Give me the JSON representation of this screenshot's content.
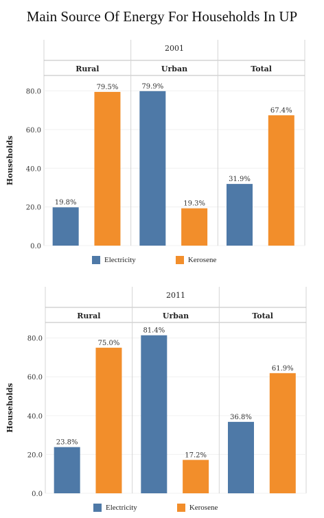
{
  "title": "Main Source Of Energy For Households In UP",
  "colors": {
    "electricity": "#4e79a7",
    "kerosene": "#f28e2b"
  },
  "chart_data": [
    {
      "type": "bar",
      "year_label": "2001",
      "panels": [
        "Rural",
        "Urban",
        "Total"
      ],
      "ylabel": "Households",
      "ylim": [
        0,
        88
      ],
      "yticks": [
        "0.0",
        "20.0",
        "40.0",
        "60.0",
        "80.0"
      ],
      "series": [
        {
          "name": "Electricity",
          "values": [
            19.8,
            79.9,
            31.9
          ],
          "labels": [
            "19.8%",
            "79.9%",
            "31.9%"
          ]
        },
        {
          "name": "Kerosene",
          "values": [
            79.5,
            19.3,
            67.4
          ],
          "labels": [
            "79.5%",
            "19.3%",
            "67.4%"
          ]
        }
      ]
    },
    {
      "type": "bar",
      "year_label": "2011",
      "panels": [
        "Rural",
        "Urban",
        "Total"
      ],
      "ylabel": "Households",
      "ylim": [
        0,
        88
      ],
      "yticks": [
        "0.0",
        "20.0",
        "40.0",
        "60.0",
        "80.0"
      ],
      "series": [
        {
          "name": "Electricity",
          "values": [
            23.8,
            81.4,
            36.8
          ],
          "labels": [
            "23.8%",
            "81.4%",
            "36.8%"
          ]
        },
        {
          "name": "Kerosene",
          "values": [
            75.0,
            17.2,
            61.9
          ],
          "labels": [
            "75.0%",
            "17.2%",
            "61.9%"
          ]
        }
      ]
    }
  ]
}
